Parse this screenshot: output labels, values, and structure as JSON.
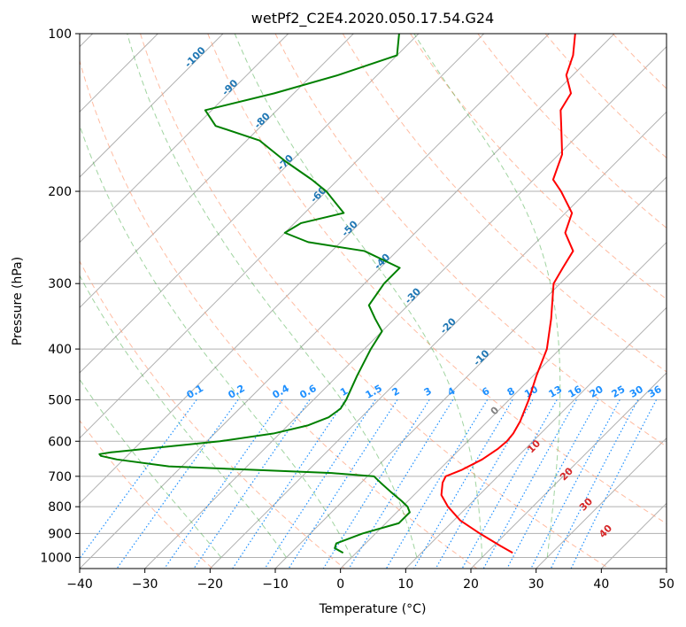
{
  "chart_data": {
    "type": "line",
    "chart_kind": "skew-T log-P diagram",
    "title": "wetPf2_C2E4.2020.050.17.54.G24",
    "xlabel": "Temperature (°C)",
    "ylabel": "Pressure (hPa)",
    "xlim": [
      -40,
      50
    ],
    "ylim": [
      1050,
      100
    ],
    "y_scale": "log",
    "x_ticks": [
      "−40",
      "−30",
      "−20",
      "−10",
      "0",
      "10",
      "20",
      "30",
      "40",
      "50"
    ],
    "x_tick_values": [
      -40,
      -30,
      -20,
      -10,
      0,
      10,
      20,
      30,
      40,
      50
    ],
    "y_ticks": [
      "100",
      "200",
      "300",
      "400",
      "500",
      "600",
      "700",
      "800",
      "900",
      "1000"
    ],
    "y_tick_values": [
      100,
      200,
      300,
      400,
      500,
      600,
      700,
      800,
      900,
      1000
    ],
    "grid": true,
    "colors": {
      "temperature": "#ff0000",
      "dewpoint": "#008000",
      "isotherm": "#b0b0b0",
      "dry_adiabat": "#ffa07a",
      "moist_adiabat": "#2ca02c",
      "mixing_ratio": "#1e90ff",
      "temperature_label": "#1f77b4",
      "lcl_label": "#d62728"
    },
    "series": [
      {
        "key": "temperature",
        "pressure": [
          980,
          950,
          900,
          850,
          800,
          760,
          720,
          700,
          680,
          650,
          620,
          600,
          580,
          550,
          500,
          450,
          400,
          350,
          300,
          280,
          260,
          240,
          220,
          200,
          190,
          170,
          150,
          140,
          130,
          120,
          110,
          100
        ],
        "values": [
          24,
          21,
          16,
          11,
          7,
          4.2,
          2.5,
          2.0,
          3.5,
          5.0,
          5.8,
          6.0,
          5.8,
          5.0,
          3.0,
          0.5,
          -2.0,
          -6.0,
          -11.0,
          -12.0,
          -13.0,
          -17.0,
          -19.0,
          -24.0,
          -27.0,
          -29.5,
          -34.0,
          -36.5,
          -37.5,
          -41.0,
          -43.0,
          -46.0
        ]
      },
      {
        "key": "dewpoint",
        "pressure": [
          980,
          960,
          940,
          900,
          860,
          820,
          800,
          780,
          750,
          720,
          705,
          700,
          690,
          680,
          670,
          650,
          640,
          635,
          630,
          620,
          600,
          580,
          560,
          540,
          520,
          500,
          450,
          400,
          370,
          350,
          330,
          300,
          280,
          260,
          250,
          240,
          230,
          220,
          200,
          190,
          175,
          160,
          150,
          140,
          130,
          120,
          110,
          100
        ],
        "values": [
          -2.0,
          -4.0,
          -4.5,
          -2.0,
          2.0,
          2.0,
          0.8,
          -1.0,
          -4.0,
          -7.0,
          -8.5,
          -9.0,
          -16.0,
          -29.0,
          -42.0,
          -51.0,
          -54.0,
          -54.5,
          -53.0,
          -48.0,
          -38.0,
          -31.0,
          -27.0,
          -25.0,
          -24.5,
          -25.0,
          -27.0,
          -29.0,
          -30.0,
          -33.0,
          -36.0,
          -37.0,
          -37.0,
          -45.0,
          -55.0,
          -60.0,
          -59.0,
          -54.0,
          -60.0,
          -64.0,
          -71.0,
          -78.0,
          -87.0,
          -91.0,
          -83.0,
          -76.0,
          -70.0,
          -73.0
        ]
      }
    ],
    "isotherms": [
      -180,
      -170,
      -160,
      -150,
      -140,
      -130,
      -120,
      -110,
      -100,
      -90,
      -80,
      -70,
      -60,
      -50,
      -40,
      -30,
      -20,
      -10,
      0,
      10,
      20,
      30,
      40,
      50
    ],
    "dry_adiabat_thetas_K": [
      190,
      210,
      230,
      250,
      270,
      290,
      310,
      330,
      350,
      370,
      390,
      410,
      430,
      450,
      470,
      490,
      510,
      530
    ],
    "moist_adiabat_start_temps_C": [
      -20,
      -10,
      0,
      10,
      20,
      30
    ],
    "mixing_ratios_gkg": [
      0.1,
      0.2,
      0.4,
      0.6,
      1,
      1.5,
      2,
      3,
      4,
      6,
      8,
      10,
      13,
      16,
      20,
      25,
      30,
      36
    ],
    "mixing_ratio_labels": [
      "0.1",
      "0.2",
      "0.4",
      "0.6",
      "1",
      "1.5",
      "2",
      "3",
      "4",
      "6",
      "8",
      "10",
      "13",
      "16",
      "20",
      "25",
      "30",
      "36"
    ],
    "isotherm_labels": [
      {
        "text": "-100",
        "value": -100
      },
      {
        "text": "-90",
        "value": -90
      },
      {
        "text": "-80",
        "value": -80
      },
      {
        "text": "-70",
        "value": -70
      },
      {
        "text": "-60",
        "value": -60
      },
      {
        "text": "-50",
        "value": -50
      },
      {
        "text": "-40",
        "value": -40
      },
      {
        "text": "-30",
        "value": -30
      },
      {
        "text": "-20",
        "value": -20
      },
      {
        "text": "-10",
        "value": -10
      }
    ],
    "lcl_labels": [
      {
        "text": "0",
        "t": 24,
        "p": 530
      },
      {
        "text": "10",
        "t": 30,
        "p": 620
      },
      {
        "text": "20",
        "t": 35,
        "p": 700
      },
      {
        "text": "30",
        "t": 38,
        "p": 800
      },
      {
        "text": "40",
        "t": 41,
        "p": 900
      }
    ]
  }
}
